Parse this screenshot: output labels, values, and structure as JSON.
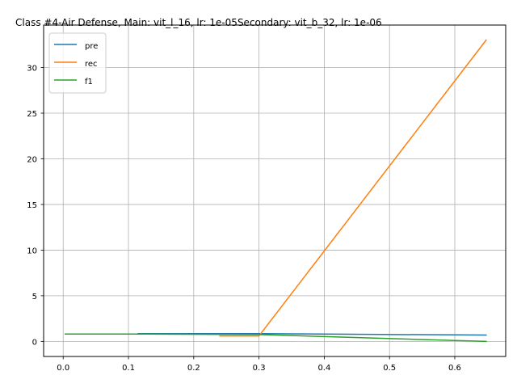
{
  "chart_data": {
    "type": "line",
    "title": "Class #4-Air Defense, Main: vit_l_16, lr: 1e-05Secondary: vit_b_32, lr: 1e-06",
    "xlabel": "",
    "ylabel": "",
    "xlim": [
      -0.03,
      0.678
    ],
    "ylim": [
      -1.65,
      34.65
    ],
    "xticks": [
      0.0,
      0.1,
      0.2,
      0.3,
      0.4,
      0.5,
      0.6
    ],
    "xtick_labels": [
      "0.0",
      "0.1",
      "0.2",
      "0.3",
      "0.4",
      "0.5",
      "0.6"
    ],
    "yticks": [
      0,
      5,
      10,
      15,
      20,
      25,
      30
    ],
    "ytick_labels": [
      "0",
      "5",
      "10",
      "15",
      "20",
      "25",
      "30"
    ],
    "grid": true,
    "legend_position": "upper-left",
    "series": [
      {
        "name": "pre",
        "color": "#1f77b4",
        "x": [
          0.115,
          0.3,
          0.648
        ],
        "y": [
          0.85,
          0.85,
          0.7
        ]
      },
      {
        "name": "rec",
        "color": "#ff7f0e",
        "x": [
          0.24,
          0.3,
          0.648
        ],
        "y": [
          0.6,
          0.6,
          33.0
        ]
      },
      {
        "name": "f1",
        "color": "#2ca02c",
        "x": [
          0.003,
          0.115,
          0.3,
          0.648
        ],
        "y": [
          0.8,
          0.8,
          0.75,
          0.0
        ]
      }
    ]
  }
}
